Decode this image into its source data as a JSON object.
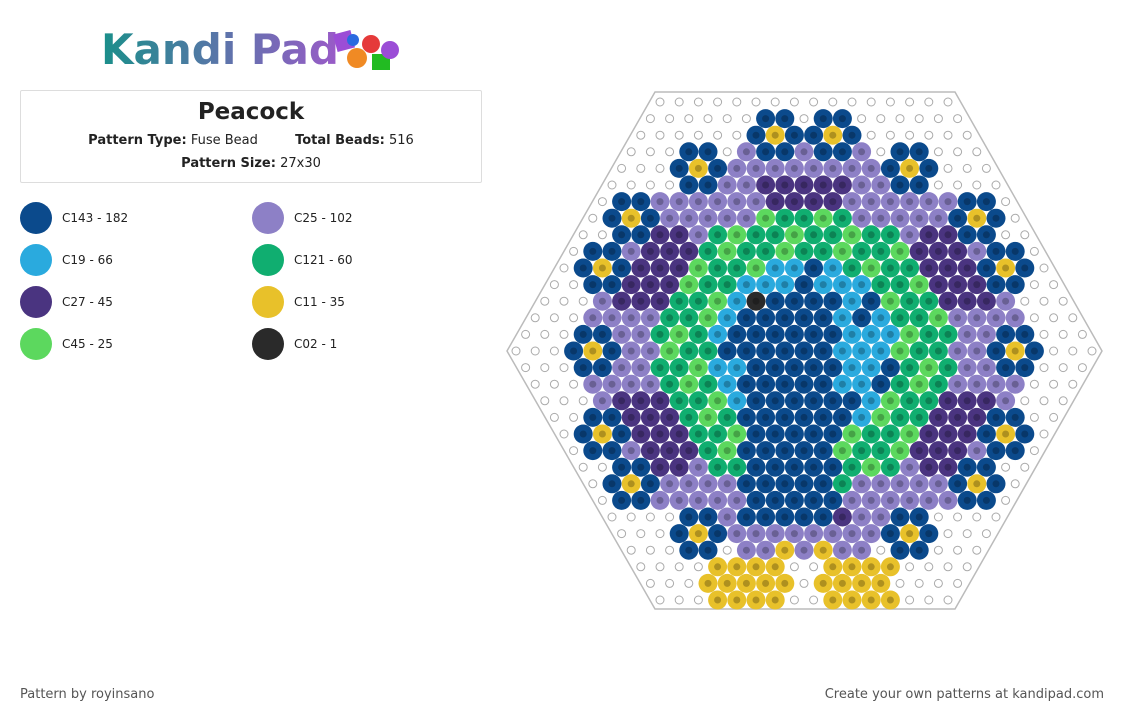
{
  "logo": "Kandi Pad",
  "title": "Peacock",
  "info": {
    "pattern_type": {
      "label": "Pattern Type:",
      "value": "Fuse Bead"
    },
    "total_beads": {
      "label": "Total Beads:",
      "value": "516"
    },
    "pattern_size": {
      "label": "Pattern Size:",
      "value": "27x30"
    }
  },
  "colors": [
    {
      "label": "C143 - 182",
      "color": "#0b4a8c"
    },
    {
      "label": "C25 - 102",
      "color": "#8d80c6"
    },
    {
      "label": "C19 - 66",
      "color": "#2aaade"
    },
    {
      "label": "C121 - 60",
      "color": "#10ae70"
    },
    {
      "label": "C27 - 45",
      "color": "#4a3480"
    },
    {
      "label": "C11 - 35",
      "color": "#e8c12a"
    },
    {
      "label": "C45 - 25",
      "color": "#5cd85e"
    },
    {
      "label": "C02 - 1",
      "color": "#2a2a2a"
    }
  ],
  "footer": {
    "credit": "Pattern by royinsano",
    "cta": "Create your own patterns at kandipad.com"
  }
}
